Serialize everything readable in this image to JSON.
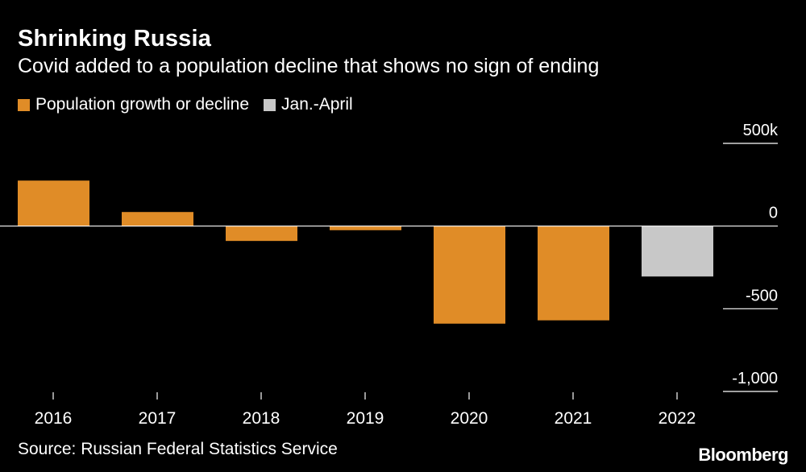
{
  "title": "Shrinking Russia",
  "subtitle": "Covid added to a population decline that shows no sign of ending",
  "legend": [
    {
      "label": "Population growth or decline",
      "color": "#e08c27"
    },
    {
      "label": "Jan.-April",
      "color": "#c8c8c8"
    }
  ],
  "source": "Source: Russian Federal Statistics Service",
  "brand": "Bloomberg",
  "chart_data": {
    "type": "bar",
    "title": "Shrinking Russia",
    "subtitle": "Covid added to a population decline that shows no sign of ending",
    "xlabel": "",
    "ylabel": "",
    "categories": [
      "2016",
      "2017",
      "2018",
      "2019",
      "2020",
      "2021",
      "2022"
    ],
    "values": [
      275,
      85,
      -90,
      -25,
      -590,
      -570,
      -305
    ],
    "series_of_bar": [
      "Population growth or decline",
      "Population growth or decline",
      "Population growth or decline",
      "Population growth or decline",
      "Population growth or decline",
      "Population growth or decline",
      "Jan.-April"
    ],
    "ylim": [
      -1000,
      500
    ],
    "yticks": [
      500,
      0,
      -500,
      -1000
    ],
    "ytick_labels": [
      "500k",
      "0",
      "-500",
      "-1,000"
    ],
    "legend_position": "top-left",
    "grid": false
  }
}
